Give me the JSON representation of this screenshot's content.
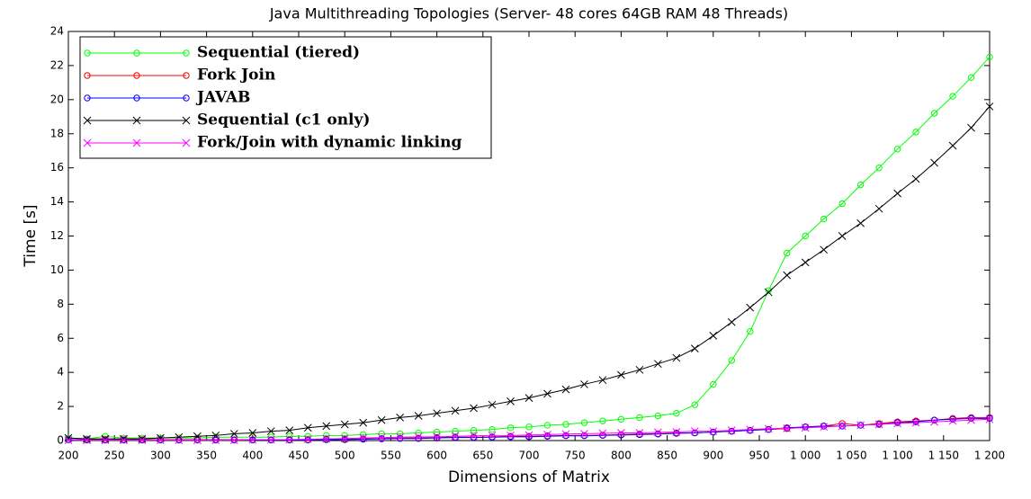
{
  "chart_data": {
    "type": "line",
    "title": "Java Multithreading Topologies (Server- 48 cores 64GB RAM 48 Threads)",
    "xlabel": "Dimensions of Matrix",
    "ylabel": "Time [s]",
    "x": [
      200,
      220,
      240,
      260,
      280,
      300,
      320,
      340,
      360,
      380,
      400,
      420,
      440,
      460,
      480,
      500,
      520,
      540,
      560,
      580,
      600,
      620,
      640,
      660,
      680,
      700,
      720,
      740,
      760,
      780,
      800,
      820,
      840,
      860,
      880,
      900,
      920,
      940,
      960,
      980,
      1000,
      1020,
      1040,
      1060,
      1080,
      1100,
      1120,
      1140,
      1160,
      1180,
      1200
    ],
    "series": [
      {
        "name": "Sequential (tiered)",
        "color": "#00ff00",
        "marker": "circle",
        "values": [
          0.15,
          0.1,
          0.25,
          0.15,
          0.15,
          0.15,
          0.15,
          0.15,
          0.2,
          0.2,
          0.2,
          0.2,
          0.25,
          0.25,
          0.3,
          0.3,
          0.35,
          0.4,
          0.4,
          0.45,
          0.5,
          0.55,
          0.6,
          0.65,
          0.75,
          0.8,
          0.9,
          0.95,
          1.05,
          1.15,
          1.25,
          1.35,
          1.45,
          1.6,
          2.1,
          3.3,
          4.7,
          6.4,
          8.8,
          11.0,
          12.0,
          13.0,
          13.9,
          15.0,
          16.0,
          17.1,
          18.1,
          19.2,
          20.2,
          21.3,
          22.5
        ]
      },
      {
        "name": "Fork Join",
        "color": "#ff0000",
        "marker": "circle",
        "values": [
          0.05,
          0.05,
          0.05,
          0.05,
          0.05,
          0.05,
          0.05,
          0.05,
          0.05,
          0.05,
          0.05,
          0.05,
          0.05,
          0.05,
          0.08,
          0.08,
          0.1,
          0.12,
          0.15,
          0.15,
          0.18,
          0.2,
          0.2,
          0.22,
          0.25,
          0.25,
          0.28,
          0.3,
          0.3,
          0.32,
          0.35,
          0.38,
          0.4,
          0.45,
          0.45,
          0.5,
          0.55,
          0.6,
          0.65,
          0.7,
          0.8,
          0.85,
          1.0,
          0.9,
          1.0,
          1.1,
          1.15,
          1.2,
          1.3,
          1.35,
          1.35
        ]
      },
      {
        "name": "JAVAB",
        "color": "#0000ff",
        "marker": "circle",
        "values": [
          0.05,
          0.03,
          0.03,
          0.03,
          0.03,
          0.03,
          0.03,
          0.03,
          0.03,
          0.03,
          0.03,
          0.03,
          0.03,
          0.03,
          0.05,
          0.05,
          0.08,
          0.1,
          0.12,
          0.12,
          0.15,
          0.18,
          0.18,
          0.2,
          0.22,
          0.22,
          0.25,
          0.28,
          0.28,
          0.3,
          0.32,
          0.35,
          0.38,
          0.42,
          0.45,
          0.5,
          0.55,
          0.6,
          0.65,
          0.75,
          0.8,
          0.85,
          0.85,
          0.9,
          0.95,
          1.05,
          1.1,
          1.2,
          1.25,
          1.3,
          1.3
        ]
      },
      {
        "name": "Sequential (c1 only)",
        "color": "#000000",
        "marker": "x",
        "values": [
          0.15,
          0.1,
          0.1,
          0.1,
          0.1,
          0.15,
          0.2,
          0.25,
          0.3,
          0.4,
          0.45,
          0.55,
          0.6,
          0.75,
          0.85,
          0.95,
          1.05,
          1.2,
          1.35,
          1.45,
          1.6,
          1.75,
          1.9,
          2.1,
          2.3,
          2.5,
          2.75,
          3.0,
          3.3,
          3.55,
          3.85,
          4.15,
          4.5,
          4.85,
          5.4,
          6.15,
          6.95,
          7.8,
          8.7,
          9.7,
          10.45,
          11.2,
          12.0,
          12.75,
          13.6,
          14.5,
          15.35,
          16.3,
          17.3,
          18.35,
          19.6
        ]
      },
      {
        "name": "Fork/Join with dynamic linking",
        "color": "#ff00ff",
        "marker": "x",
        "values": [
          0.02,
          0.02,
          0.02,
          0.02,
          0.02,
          0.02,
          0.02,
          0.02,
          0.02,
          0.02,
          0.05,
          0.05,
          0.05,
          0.08,
          0.1,
          0.12,
          0.15,
          0.18,
          0.2,
          0.22,
          0.22,
          0.25,
          0.28,
          0.3,
          0.3,
          0.32,
          0.35,
          0.38,
          0.4,
          0.42,
          0.45,
          0.45,
          0.48,
          0.5,
          0.55,
          0.55,
          0.6,
          0.65,
          0.7,
          0.72,
          0.75,
          0.8,
          0.85,
          0.9,
          0.95,
          1.0,
          1.05,
          1.1,
          1.15,
          1.2,
          1.25
        ]
      }
    ],
    "xlim": [
      200,
      1200
    ],
    "xticks": [
      200,
      250,
      300,
      350,
      400,
      450,
      500,
      550,
      600,
      650,
      700,
      750,
      800,
      850,
      900,
      950,
      {
        "value": 1000,
        "label": "1 000"
      },
      {
        "value": 1050,
        "label": "1 050"
      },
      {
        "value": 1100,
        "label": "1 100"
      },
      {
        "value": 1150,
        "label": "1 150"
      },
      {
        "value": 1200,
        "label": "1 200"
      }
    ],
    "ylim": [
      0,
      24
    ],
    "yticks": [
      0,
      2,
      4,
      6,
      8,
      10,
      12,
      14,
      16,
      18,
      20,
      22,
      24
    ],
    "legend": "upper left"
  }
}
